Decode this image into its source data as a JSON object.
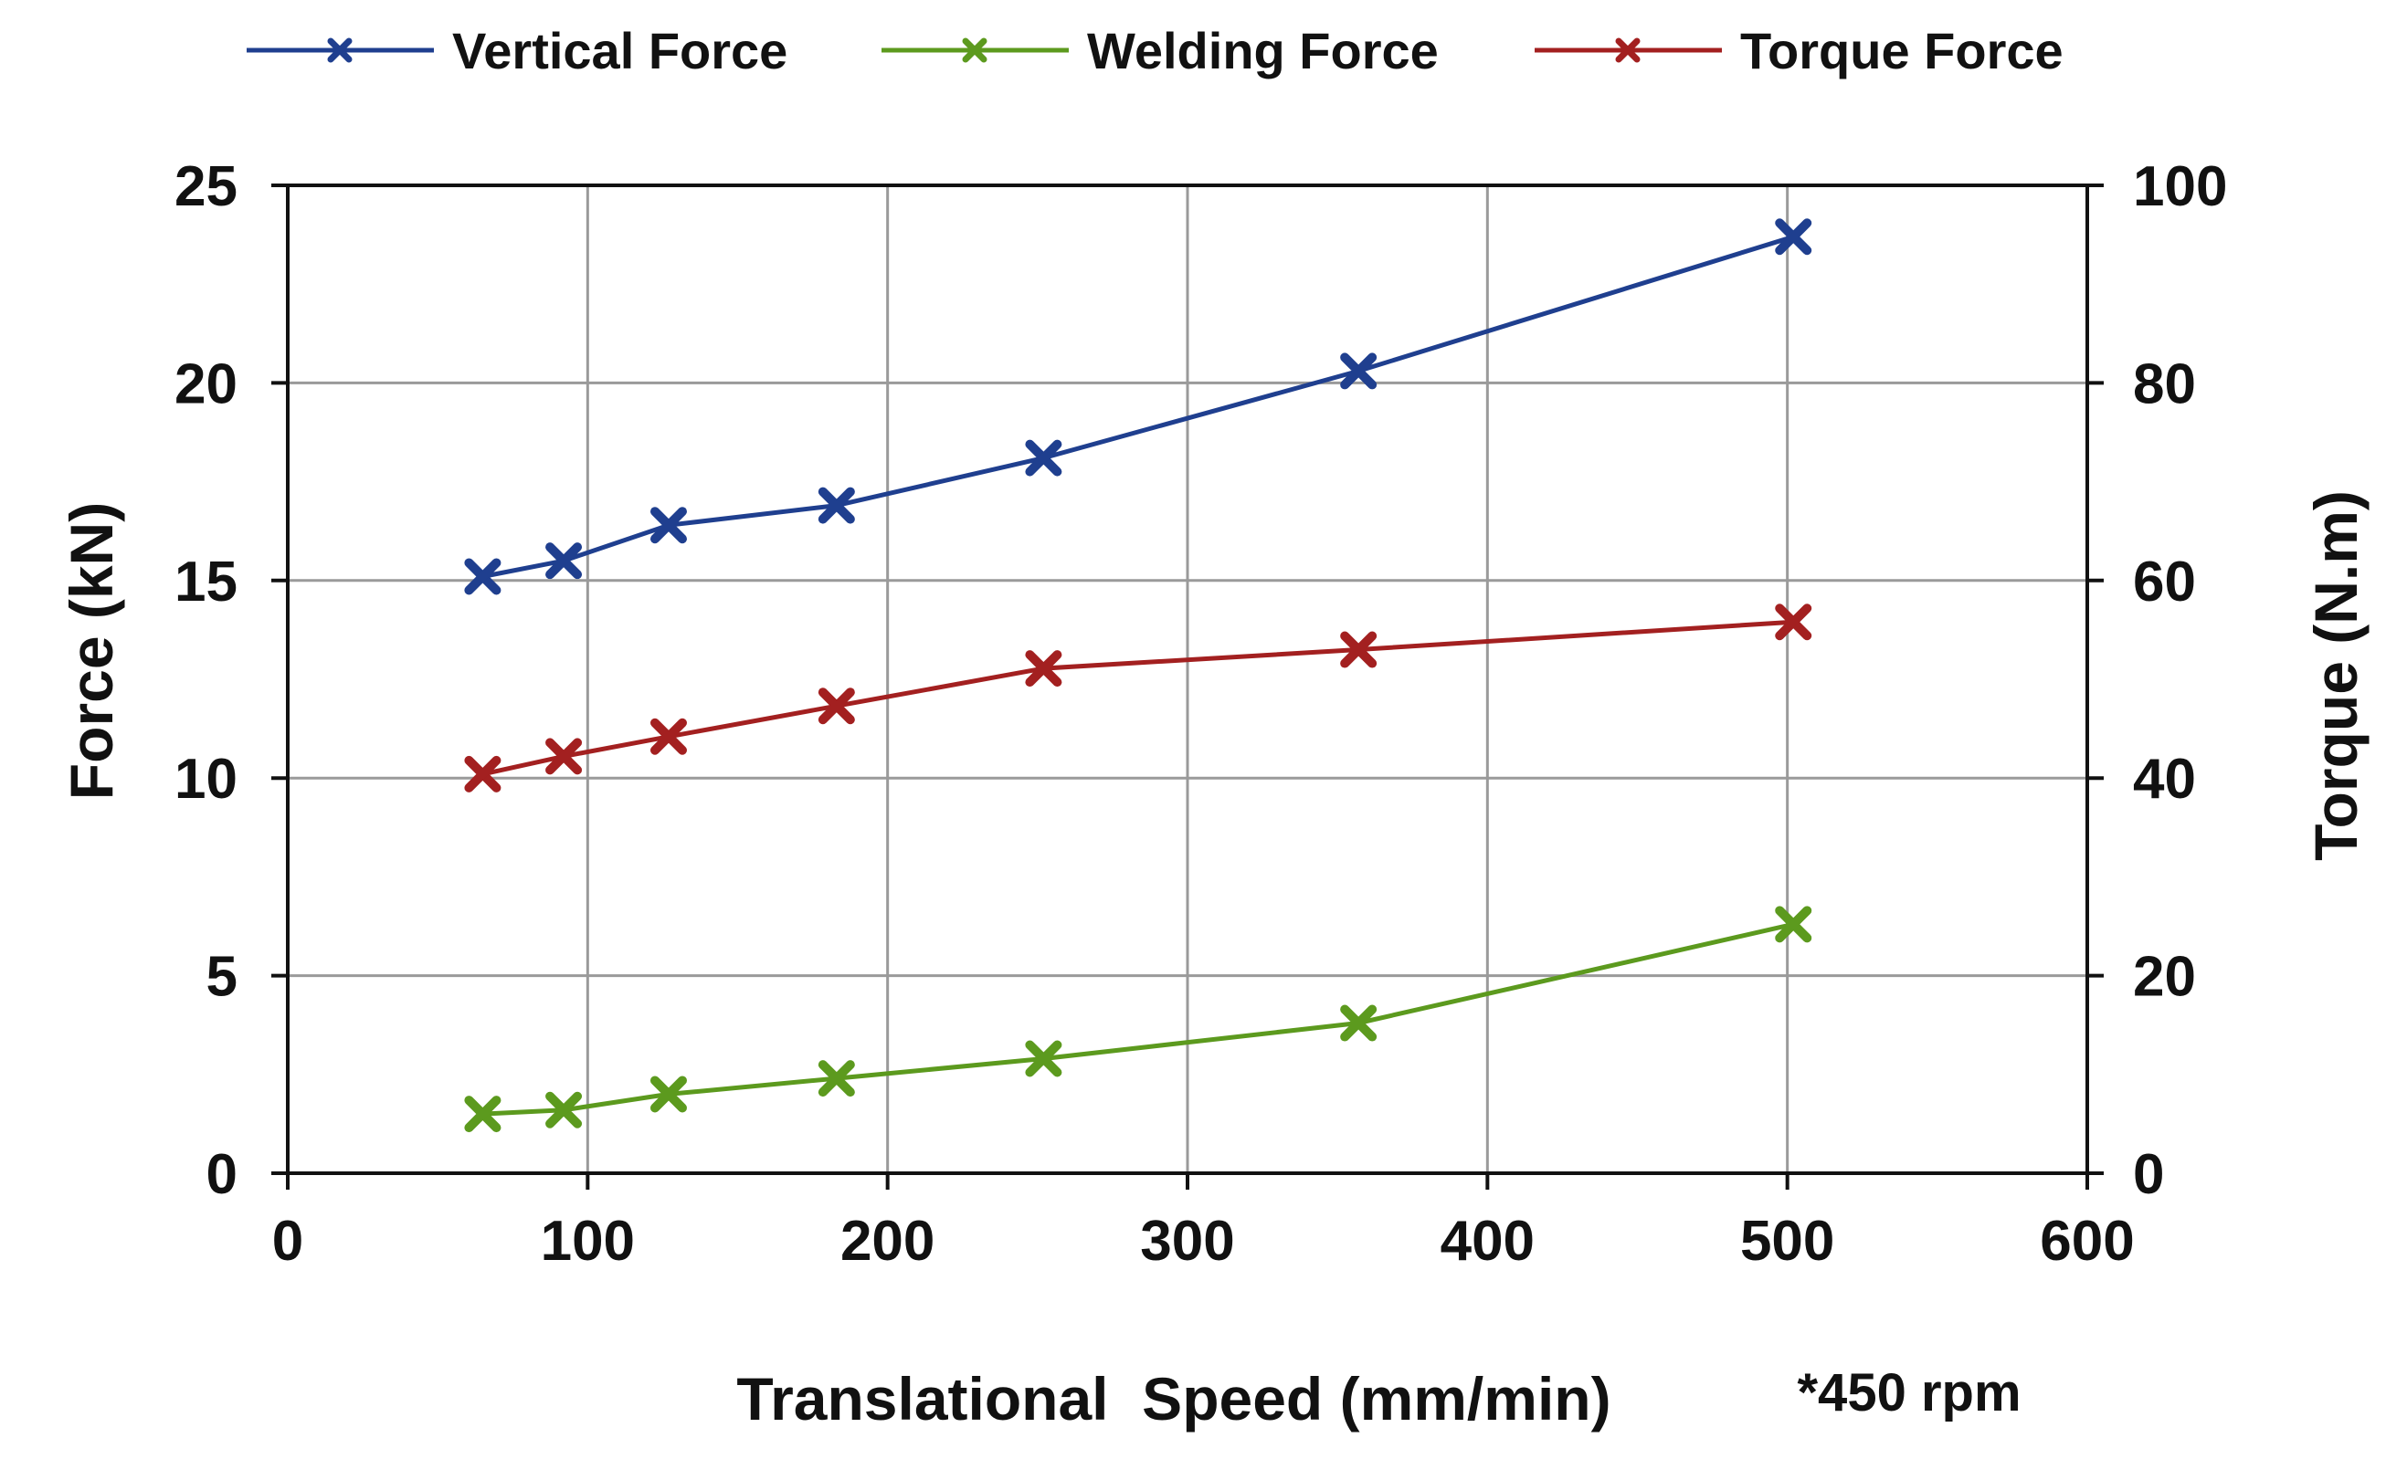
{
  "chart_data": {
    "type": "line",
    "title": "",
    "xlabel": "Translational  Speed (mm/min)",
    "ylabel": "Force (kN)",
    "y2label": "Torque (N.m)",
    "note": "*450 rpm",
    "xlim": [
      0,
      600
    ],
    "ylim": [
      0,
      25
    ],
    "y2lim": [
      0,
      100
    ],
    "xticks": [
      0,
      100,
      200,
      300,
      400,
      500,
      600
    ],
    "yticks": [
      0,
      5,
      10,
      15,
      20,
      25
    ],
    "y2ticks": [
      0,
      20,
      40,
      60,
      80,
      100
    ],
    "grid": true,
    "legend_position": "top",
    "x": [
      65,
      92,
      127,
      183,
      252,
      357,
      502
    ],
    "series": [
      {
        "name": "Vertical Force",
        "axis": "left",
        "color": "#1f3f8f",
        "values": [
          15.1,
          15.5,
          16.4,
          16.9,
          18.1,
          20.3,
          23.7
        ]
      },
      {
        "name": "Welding Force",
        "axis": "left",
        "color": "#5c9a1e",
        "values": [
          1.5,
          1.6,
          2.0,
          2.4,
          2.9,
          3.8,
          6.3
        ]
      },
      {
        "name": "Torque Force",
        "axis": "right",
        "color": "#a32020",
        "values": [
          40.4,
          42.2,
          44.2,
          47.3,
          51.1,
          53.0,
          55.8
        ]
      }
    ]
  }
}
